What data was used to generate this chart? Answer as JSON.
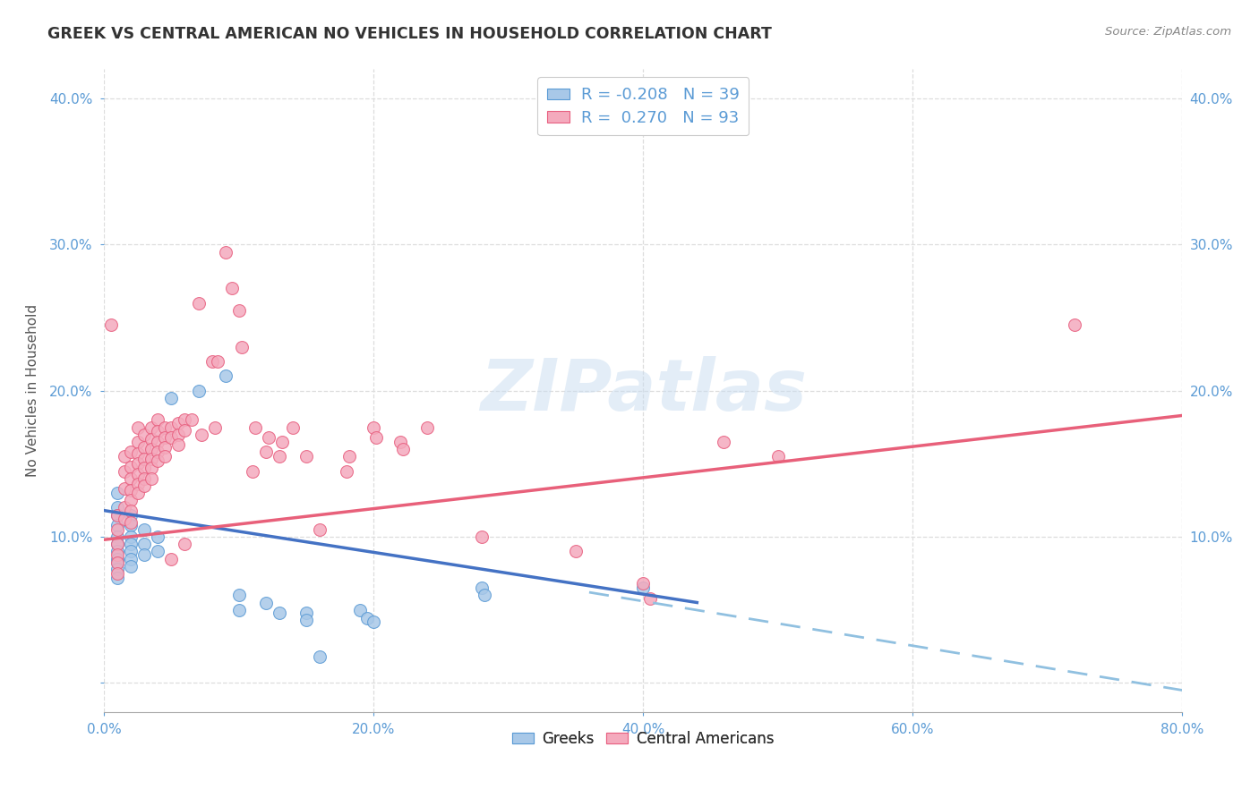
{
  "title": "GREEK VS CENTRAL AMERICAN NO VEHICLES IN HOUSEHOLD CORRELATION CHART",
  "source": "Source: ZipAtlas.com",
  "ylabel": "No Vehicles in Household",
  "xlim": [
    0.0,
    0.8
  ],
  "ylim": [
    -0.02,
    0.42
  ],
  "yticks": [
    0.0,
    0.1,
    0.2,
    0.3,
    0.4
  ],
  "ytick_labels": [
    "",
    "10.0%",
    "20.0%",
    "30.0%",
    "40.0%"
  ],
  "xticks": [
    0.0,
    0.2,
    0.4,
    0.6,
    0.8
  ],
  "xtick_labels": [
    "0.0%",
    "20.0%",
    "40.0%",
    "60.0%",
    "80.0%"
  ],
  "background_color": "#ffffff",
  "watermark": "ZIPatlas",
  "blue_color": "#A8C8E8",
  "pink_color": "#F4AABD",
  "blue_edge_color": "#5B9BD5",
  "pink_edge_color": "#E86080",
  "trend_blue_color": "#4472C4",
  "trend_blue_dash_color": "#90C0E0",
  "trend_pink_color": "#E8607A",
  "tick_color": "#5B9BD5",
  "title_color": "#333333",
  "source_color": "#888888",
  "grid_color": "#DDDDDD",
  "legend_text_color": "#5B9BD5",
  "greek_points": [
    [
      0.01,
      0.13
    ],
    [
      0.01,
      0.12
    ],
    [
      0.01,
      0.115
    ],
    [
      0.01,
      0.108
    ],
    [
      0.01,
      0.1
    ],
    [
      0.01,
      0.095
    ],
    [
      0.01,
      0.09
    ],
    [
      0.01,
      0.085
    ],
    [
      0.01,
      0.082
    ],
    [
      0.01,
      0.078
    ],
    [
      0.01,
      0.072
    ],
    [
      0.02,
      0.115
    ],
    [
      0.02,
      0.108
    ],
    [
      0.02,
      0.1
    ],
    [
      0.02,
      0.095
    ],
    [
      0.02,
      0.09
    ],
    [
      0.02,
      0.085
    ],
    [
      0.02,
      0.08
    ],
    [
      0.03,
      0.105
    ],
    [
      0.03,
      0.095
    ],
    [
      0.03,
      0.088
    ],
    [
      0.04,
      0.1
    ],
    [
      0.04,
      0.09
    ],
    [
      0.05,
      0.195
    ],
    [
      0.07,
      0.2
    ],
    [
      0.09,
      0.21
    ],
    [
      0.1,
      0.06
    ],
    [
      0.1,
      0.05
    ],
    [
      0.12,
      0.055
    ],
    [
      0.13,
      0.048
    ],
    [
      0.15,
      0.048
    ],
    [
      0.15,
      0.043
    ],
    [
      0.16,
      0.018
    ],
    [
      0.19,
      0.05
    ],
    [
      0.195,
      0.044
    ],
    [
      0.2,
      0.042
    ],
    [
      0.28,
      0.065
    ],
    [
      0.282,
      0.06
    ],
    [
      0.4,
      0.065
    ]
  ],
  "central_american_points": [
    [
      0.005,
      0.245
    ],
    [
      0.01,
      0.115
    ],
    [
      0.01,
      0.105
    ],
    [
      0.01,
      0.095
    ],
    [
      0.01,
      0.088
    ],
    [
      0.01,
      0.082
    ],
    [
      0.01,
      0.075
    ],
    [
      0.015,
      0.155
    ],
    [
      0.015,
      0.145
    ],
    [
      0.015,
      0.133
    ],
    [
      0.015,
      0.12
    ],
    [
      0.015,
      0.112
    ],
    [
      0.02,
      0.158
    ],
    [
      0.02,
      0.148
    ],
    [
      0.02,
      0.14
    ],
    [
      0.02,
      0.132
    ],
    [
      0.02,
      0.125
    ],
    [
      0.02,
      0.118
    ],
    [
      0.02,
      0.11
    ],
    [
      0.025,
      0.175
    ],
    [
      0.025,
      0.165
    ],
    [
      0.025,
      0.157
    ],
    [
      0.025,
      0.15
    ],
    [
      0.025,
      0.143
    ],
    [
      0.025,
      0.136
    ],
    [
      0.025,
      0.13
    ],
    [
      0.03,
      0.17
    ],
    [
      0.03,
      0.161
    ],
    [
      0.03,
      0.153
    ],
    [
      0.03,
      0.147
    ],
    [
      0.03,
      0.14
    ],
    [
      0.03,
      0.135
    ],
    [
      0.035,
      0.175
    ],
    [
      0.035,
      0.167
    ],
    [
      0.035,
      0.16
    ],
    [
      0.035,
      0.153
    ],
    [
      0.035,
      0.147
    ],
    [
      0.035,
      0.14
    ],
    [
      0.04,
      0.18
    ],
    [
      0.04,
      0.172
    ],
    [
      0.04,
      0.165
    ],
    [
      0.04,
      0.158
    ],
    [
      0.04,
      0.152
    ],
    [
      0.045,
      0.175
    ],
    [
      0.045,
      0.168
    ],
    [
      0.045,
      0.161
    ],
    [
      0.045,
      0.155
    ],
    [
      0.05,
      0.175
    ],
    [
      0.05,
      0.168
    ],
    [
      0.05,
      0.085
    ],
    [
      0.055,
      0.178
    ],
    [
      0.055,
      0.17
    ],
    [
      0.055,
      0.163
    ],
    [
      0.06,
      0.18
    ],
    [
      0.06,
      0.173
    ],
    [
      0.06,
      0.095
    ],
    [
      0.065,
      0.18
    ],
    [
      0.07,
      0.26
    ],
    [
      0.072,
      0.17
    ],
    [
      0.08,
      0.22
    ],
    [
      0.082,
      0.175
    ],
    [
      0.084,
      0.22
    ],
    [
      0.09,
      0.295
    ],
    [
      0.095,
      0.27
    ],
    [
      0.1,
      0.255
    ],
    [
      0.102,
      0.23
    ],
    [
      0.11,
      0.145
    ],
    [
      0.112,
      0.175
    ],
    [
      0.12,
      0.158
    ],
    [
      0.122,
      0.168
    ],
    [
      0.13,
      0.155
    ],
    [
      0.132,
      0.165
    ],
    [
      0.14,
      0.175
    ],
    [
      0.15,
      0.155
    ],
    [
      0.16,
      0.105
    ],
    [
      0.18,
      0.145
    ],
    [
      0.182,
      0.155
    ],
    [
      0.2,
      0.175
    ],
    [
      0.202,
      0.168
    ],
    [
      0.22,
      0.165
    ],
    [
      0.222,
      0.16
    ],
    [
      0.24,
      0.175
    ],
    [
      0.28,
      0.1
    ],
    [
      0.35,
      0.09
    ],
    [
      0.4,
      0.068
    ],
    [
      0.405,
      0.058
    ],
    [
      0.46,
      0.165
    ],
    [
      0.5,
      0.155
    ],
    [
      0.72,
      0.245
    ]
  ],
  "blue_trend": {
    "x": [
      0.0,
      0.44
    ],
    "y": [
      0.118,
      0.055
    ]
  },
  "blue_dash": {
    "x": [
      0.36,
      0.8
    ],
    "y": [
      0.062,
      -0.005
    ]
  },
  "pink_trend": {
    "x": [
      0.0,
      0.8
    ],
    "y": [
      0.098,
      0.183
    ]
  }
}
